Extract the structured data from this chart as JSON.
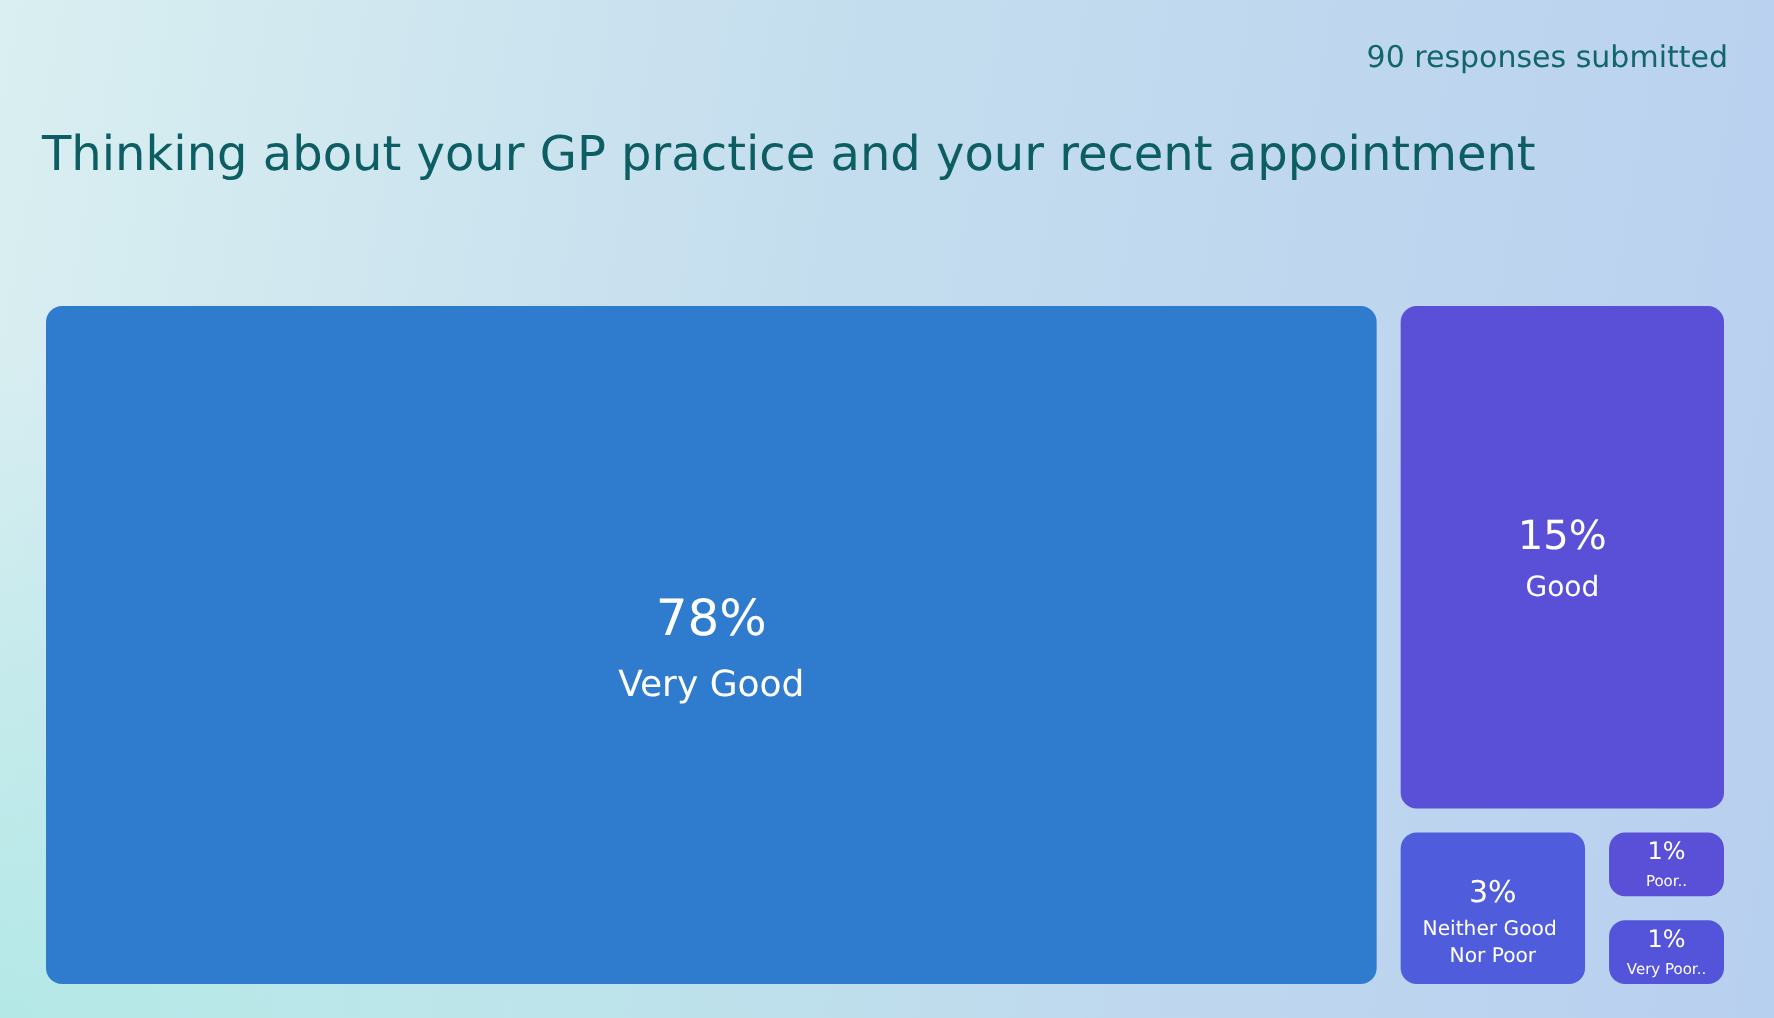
{
  "chart_data": {
    "type": "other",
    "title": "Thinking about your GP practice and your recent appointment",
    "subtitle": "90 responses submitted",
    "categories": [
      "Very Good",
      "Good",
      "Neither Good Nor Poor",
      "Poor..",
      "Very Poor.."
    ],
    "values": [
      78,
      15,
      3,
      1,
      1
    ],
    "value_labels": [
      "78%",
      "15%",
      "3%",
      "1%",
      "1%"
    ],
    "colors": [
      "#2f7ccf",
      "#5a50d8",
      "#4f5cdc",
      "#5a50d8",
      "#5454da"
    ]
  }
}
